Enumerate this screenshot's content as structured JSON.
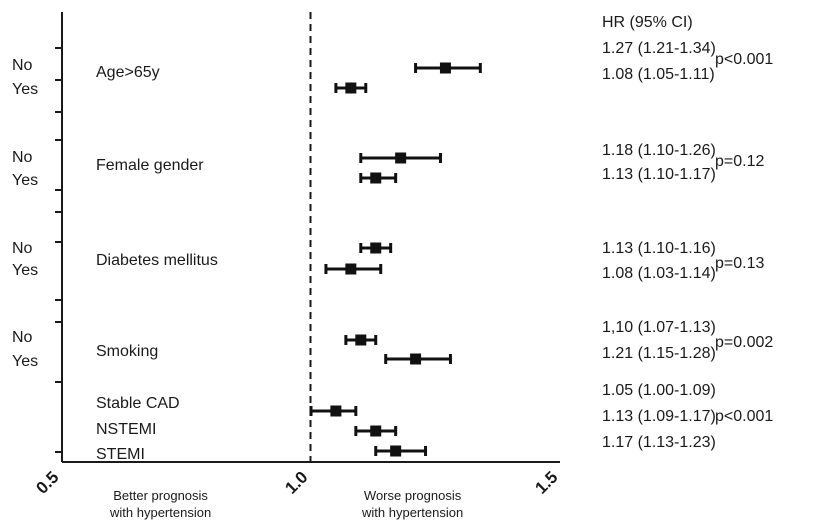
{
  "chart_data": {
    "type": "forest",
    "x_ticks": [
      "0.5",
      "1.0",
      "1.5"
    ],
    "xlim": [
      0.5,
      1.5
    ],
    "reference_line": 1.0,
    "reference_style": "dashed",
    "hr_header": "HR (95% CI)",
    "footer_left": [
      "Better prognosis",
      "with hypertension"
    ],
    "footer_right": [
      "Worse prognosis",
      "with hypertension"
    ],
    "groups": [
      {
        "name": "Age>65y",
        "p": "p<0.001",
        "rows": [
          {
            "label": "No",
            "hr": 1.27,
            "lo": 1.21,
            "hi": 1.34,
            "text": "1.27 (1.21-1.34)"
          },
          {
            "label": "Yes",
            "hr": 1.08,
            "lo": 1.05,
            "hi": 1.11,
            "text": "1.08 (1.05-1.11)"
          }
        ]
      },
      {
        "name": "Female gender",
        "p": "p=0.12",
        "rows": [
          {
            "label": "No",
            "hr": 1.18,
            "lo": 1.1,
            "hi": 1.26,
            "text": "1.18 (1.10-1.26)"
          },
          {
            "label": "Yes",
            "hr": 1.13,
            "lo": 1.1,
            "hi": 1.17,
            "text": "1.13 (1.10-1.17)"
          }
        ]
      },
      {
        "name": "Diabetes mellitus",
        "p": "p=0.13",
        "rows": [
          {
            "label": "No",
            "hr": 1.13,
            "lo": 1.1,
            "hi": 1.16,
            "text": "1.13 (1.10-1.16)"
          },
          {
            "label": "Yes",
            "hr": 1.08,
            "lo": 1.03,
            "hi": 1.14,
            "text": "1.08 (1.03-1.14)"
          }
        ]
      },
      {
        "name": "Smoking",
        "p": "p=0.002",
        "rows": [
          {
            "label": "No",
            "hr": 1.1,
            "lo": 1.07,
            "hi": 1.13,
            "text": "1,10 (1.07-1.13)"
          },
          {
            "label": "Yes",
            "hr": 1.21,
            "lo": 1.15,
            "hi": 1.28,
            "text": "1.21 (1.15-1.28)"
          }
        ]
      },
      {
        "name": "",
        "p": "p<0.001",
        "rows": [
          {
            "label": "Stable CAD",
            "hr": 1.05,
            "lo": 1.0,
            "hi": 1.09,
            "text": "1.05 (1.00-1.09)"
          },
          {
            "label": "NSTEMI",
            "hr": 1.13,
            "lo": 1.09,
            "hi": 1.17,
            "text": "1.13 (1.09-1.17)"
          },
          {
            "label": "STEMI",
            "hr": 1.17,
            "lo": 1.13,
            "hi": 1.23,
            "text": "1.17 (1.13-1.23)"
          }
        ]
      }
    ]
  }
}
